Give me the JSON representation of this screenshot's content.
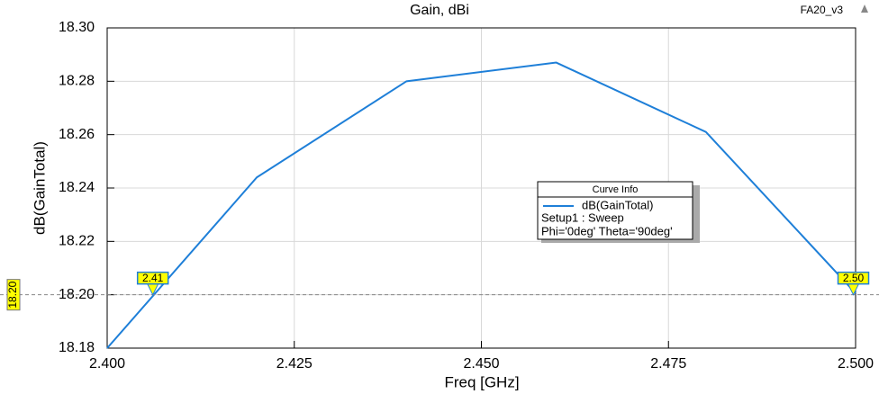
{
  "chart_data": {
    "type": "line",
    "title": "Gain, dBi",
    "corner_label": "FA20_v3",
    "x_label": "Freq [GHz]",
    "y_label": "dB(GainTotal)",
    "x": [
      2.4,
      2.42,
      2.44,
      2.46,
      2.48,
      2.5
    ],
    "series": [
      {
        "name": "dB(GainTotal)",
        "color": "#1e7fd8",
        "values": [
          18.18,
          18.244,
          18.28,
          18.287,
          18.261,
          18.2006
        ]
      }
    ],
    "xlim": [
      2.4,
      2.5
    ],
    "ylim": [
      18.18,
      18.3
    ],
    "xticks": [
      {
        "value": 2.4,
        "label": "2.400"
      },
      {
        "value": 2.425,
        "label": "2.425"
      },
      {
        "value": 2.45,
        "label": "2.450"
      },
      {
        "value": 2.475,
        "label": "2.475"
      },
      {
        "value": 2.5,
        "label": "2.500"
      }
    ],
    "yticks": [
      {
        "value": 18.18,
        "label": "18.18"
      },
      {
        "value": 18.2,
        "label": "18.20"
      },
      {
        "value": 18.22,
        "label": "18.22"
      },
      {
        "value": 18.24,
        "label": "18.24"
      },
      {
        "value": 18.26,
        "label": "18.26"
      },
      {
        "value": 18.28,
        "label": "18.28"
      },
      {
        "value": 18.3,
        "label": "18.30"
      }
    ],
    "grid": true,
    "legend": {
      "title": "Curve Info",
      "lines": [
        "Setup1 : Sweep",
        "Phi='0deg' Theta='90deg'"
      ]
    },
    "reference_line": {
      "value": 18.2,
      "label": "18.20"
    },
    "markers": [
      {
        "x": 2.4061,
        "label": "2.41"
      },
      {
        "x": 2.4997,
        "label": "2.50"
      }
    ]
  }
}
